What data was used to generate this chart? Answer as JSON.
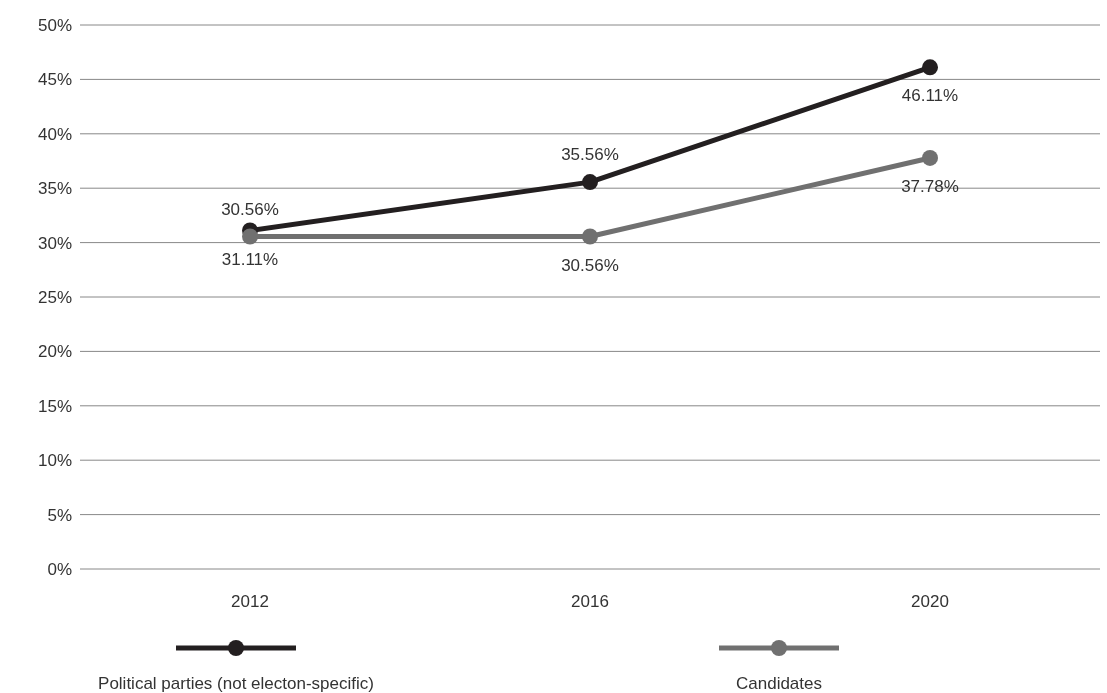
{
  "chart_data": {
    "type": "line",
    "categories": [
      "2012",
      "2016",
      "2020"
    ],
    "series": [
      {
        "name": "Political parties (not electon-specific)",
        "color": "#231f20",
        "values": [
          31.11,
          35.56,
          46.11
        ],
        "value_labels": [
          "31.11%",
          "35.56%",
          "46.11%"
        ]
      },
      {
        "name": "Candidates",
        "color": "#707070",
        "values": [
          30.56,
          30.56,
          37.78
        ],
        "value_labels": [
          "30.56%",
          "30.56%",
          "37.78%"
        ]
      }
    ],
    "ylim": [
      0,
      50
    ],
    "yticks": [
      {
        "value": 0,
        "label": "0%"
      },
      {
        "value": 5,
        "label": "5%"
      },
      {
        "value": 10,
        "label": "10%"
      },
      {
        "value": 15,
        "label": "15%"
      },
      {
        "value": 20,
        "label": "20%"
      },
      {
        "value": 25,
        "label": "25%"
      },
      {
        "value": 30,
        "label": "30%"
      },
      {
        "value": 35,
        "label": "35%"
      },
      {
        "value": 40,
        "label": "40%"
      },
      {
        "value": 45,
        "label": "45%"
      },
      {
        "value": 50,
        "label": "50%"
      }
    ],
    "grid": "y",
    "legend": "bottom",
    "marker": "circle",
    "line_style": "solid"
  }
}
